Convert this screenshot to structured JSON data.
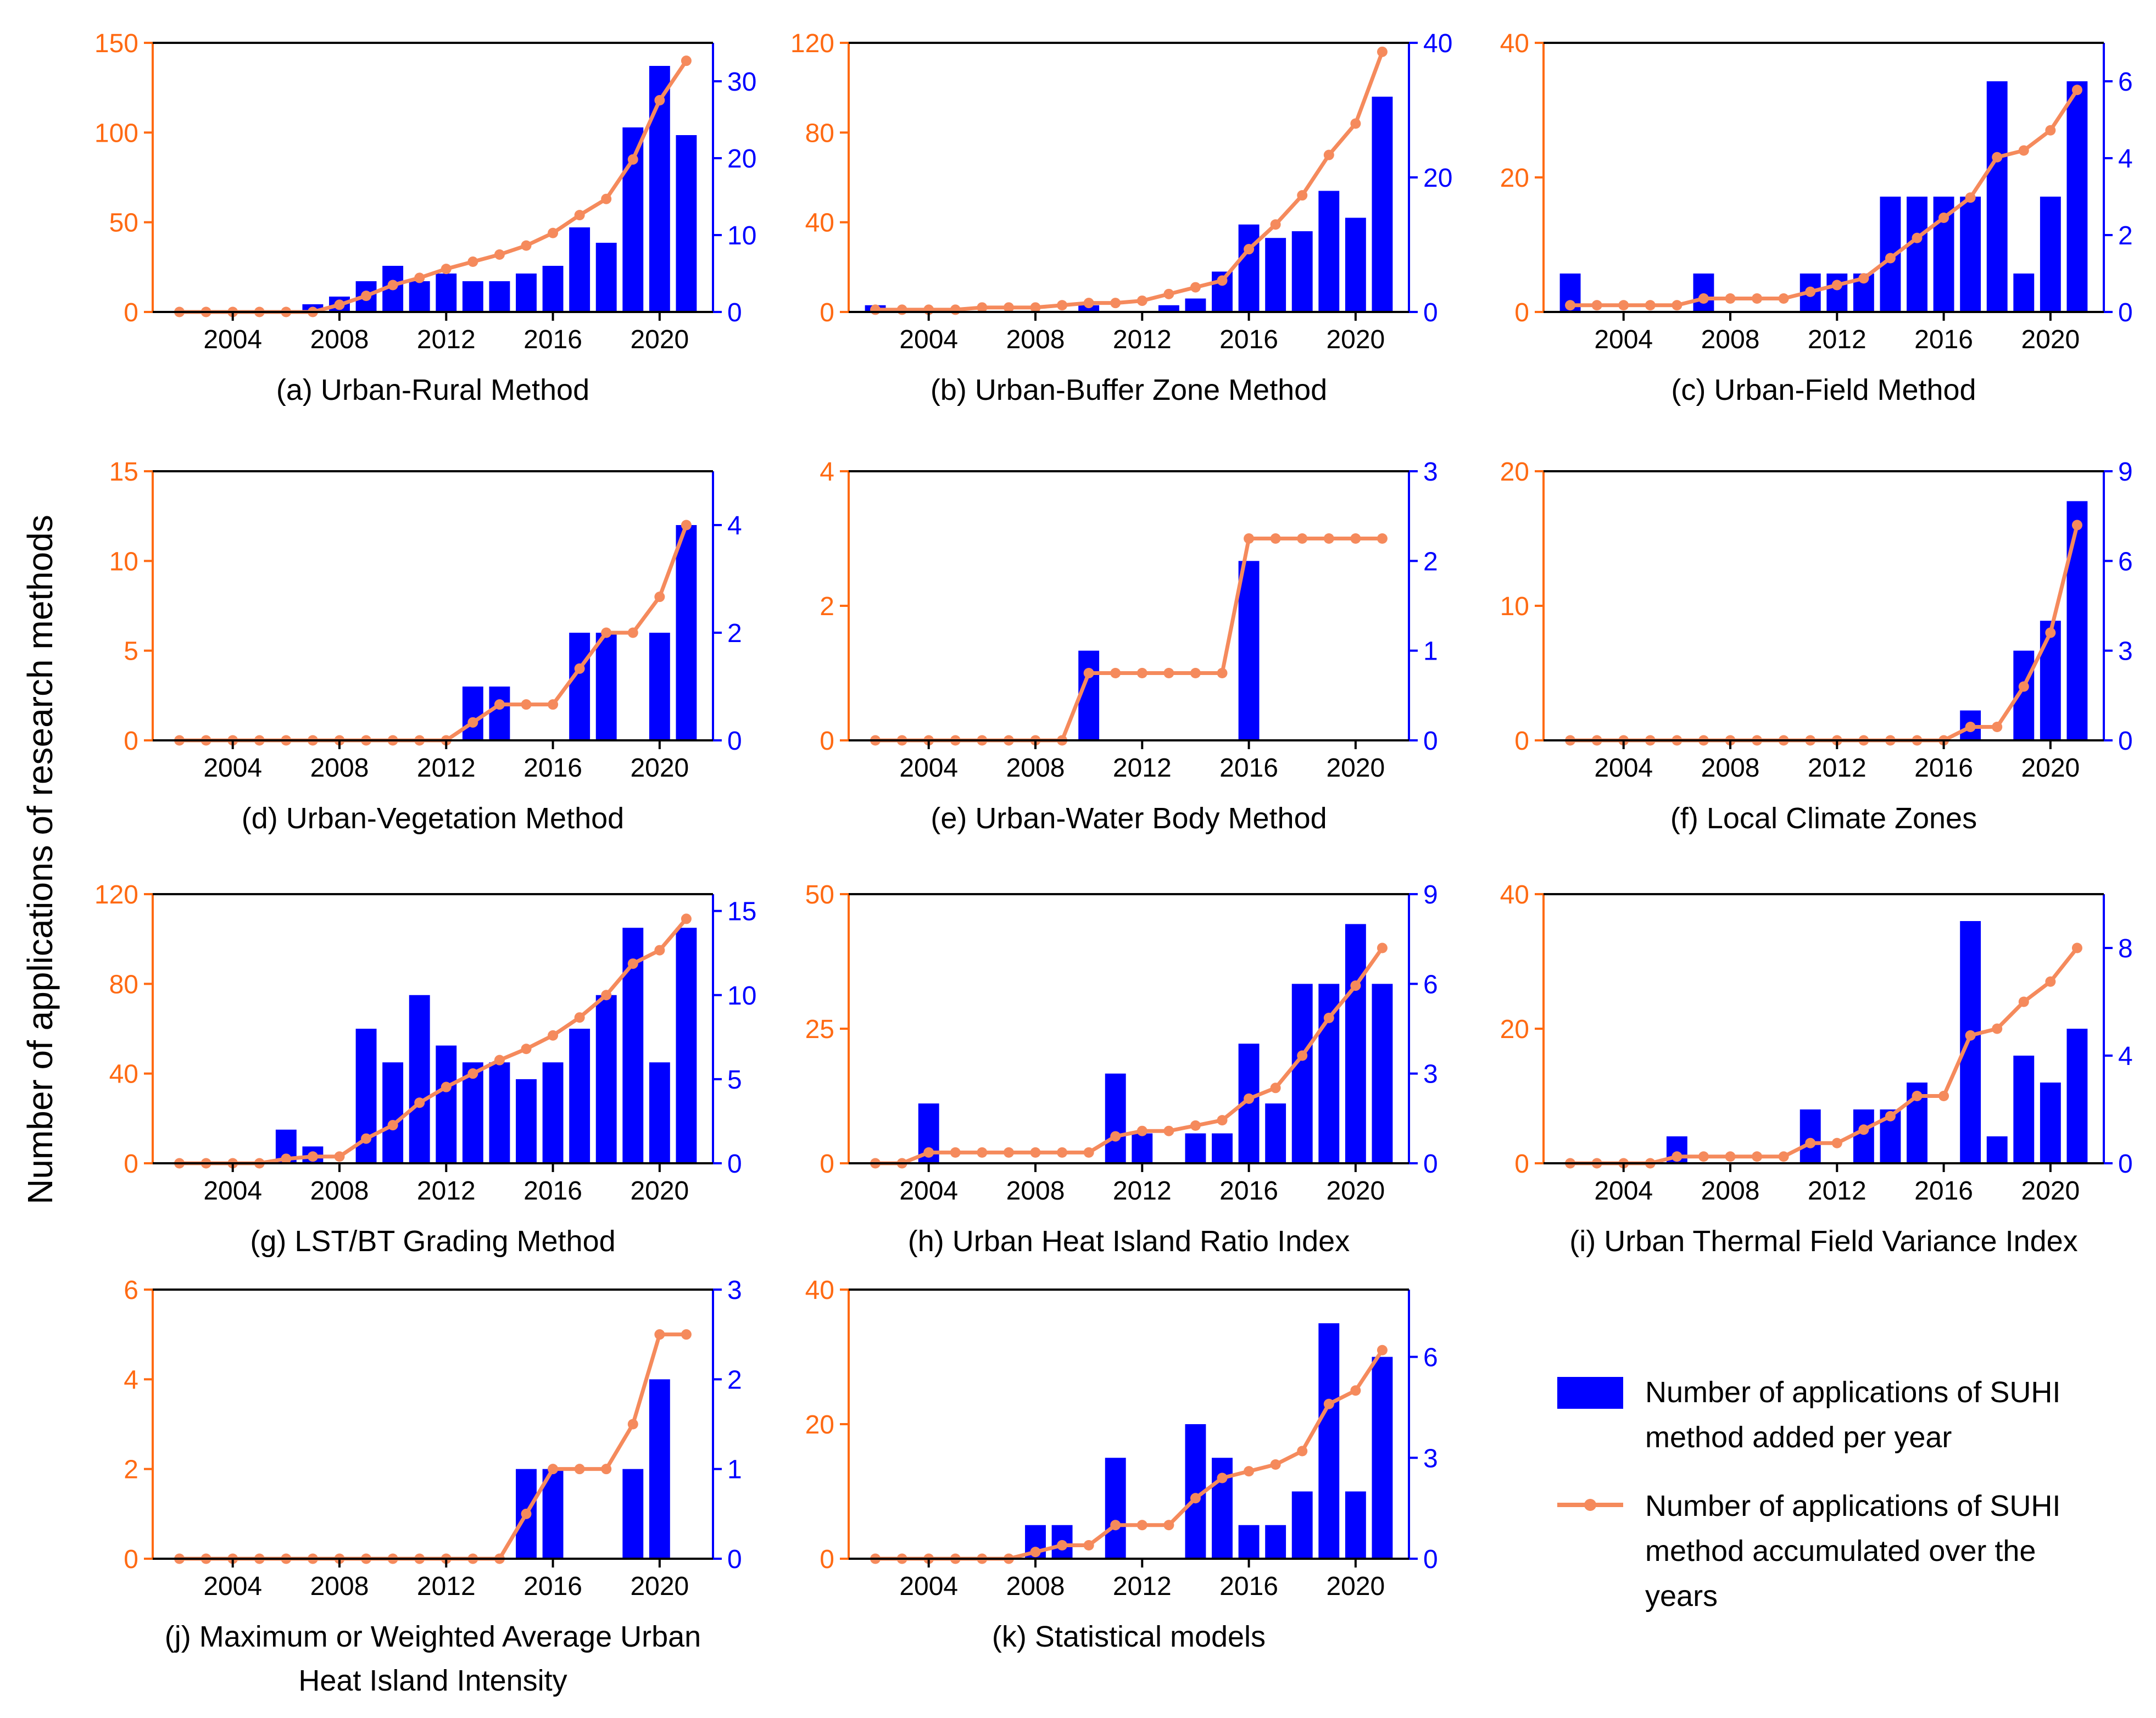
{
  "figure": {
    "ylabel": "Number of applications of research methods",
    "left_axis_color": "#FF6A13",
    "right_axis_color": "#0000FF",
    "bar_color": "#0000FF",
    "line_color": "#F58A5C",
    "x_tick_labels": [
      "2004",
      "2008",
      "2012",
      "2016",
      "2020"
    ]
  },
  "legend": {
    "bar_label_lines": [
      "Number of applications of SUHI",
      "method added per year"
    ],
    "line_label_lines": [
      "Number of applications of SUHI",
      "method accumulated over the",
      "years"
    ]
  },
  "chart_data": [
    {
      "type": "bar+line",
      "title_lines": [
        "(a) Urban-Rural Method"
      ],
      "x": [
        2002,
        2003,
        2004,
        2005,
        2006,
        2007,
        2008,
        2009,
        2010,
        2011,
        2012,
        2013,
        2014,
        2015,
        2016,
        2017,
        2018,
        2019,
        2020,
        2021
      ],
      "xlim": [
        2001,
        2022
      ],
      "xticks": [
        2004,
        2008,
        2012,
        2016,
        2020
      ],
      "bars_right_axis": [
        0,
        0,
        0,
        0,
        0,
        1,
        2,
        4,
        6,
        4,
        5,
        4,
        4,
        5,
        6,
        11,
        9,
        24,
        32,
        23
      ],
      "cumulative_left_axis": [
        0,
        0,
        0,
        0,
        0,
        0,
        4,
        9,
        15,
        19,
        24,
        28,
        32,
        37,
        44,
        54,
        63,
        85,
        118,
        140
      ],
      "left_ylim": [
        0,
        150
      ],
      "left_yticks": [
        0,
        50,
        100,
        150
      ],
      "right_ylim": [
        0,
        35
      ],
      "right_yticks": [
        0,
        10,
        20,
        30
      ]
    },
    {
      "type": "bar+line",
      "title_lines": [
        "(b) Urban-Buffer Zone Method"
      ],
      "x": [
        2002,
        2003,
        2004,
        2005,
        2006,
        2007,
        2008,
        2009,
        2010,
        2011,
        2012,
        2013,
        2014,
        2015,
        2016,
        2017,
        2018,
        2019,
        2020,
        2021
      ],
      "xlim": [
        2001,
        2022
      ],
      "xticks": [
        2004,
        2008,
        2012,
        2016,
        2020
      ],
      "bars_right_axis": [
        1,
        0,
        0,
        0,
        0,
        0,
        0,
        0,
        1,
        0,
        0,
        1,
        2,
        6,
        13,
        11,
        12,
        18,
        14,
        32
      ],
      "cumulative_left_axis": [
        1,
        1,
        1,
        1,
        2,
        2,
        2,
        3,
        4,
        4,
        5,
        8,
        11,
        14,
        28,
        39,
        52,
        70,
        84,
        116
      ],
      "left_ylim": [
        0,
        120
      ],
      "left_yticks": [
        0,
        40,
        80,
        120
      ],
      "right_ylim": [
        0,
        40
      ],
      "right_yticks": [
        0,
        20,
        40
      ]
    },
    {
      "type": "bar+line",
      "title_lines": [
        "(c) Urban-Field Method"
      ],
      "x": [
        2002,
        2003,
        2004,
        2005,
        2006,
        2007,
        2008,
        2009,
        2010,
        2011,
        2012,
        2013,
        2014,
        2015,
        2016,
        2017,
        2018,
        2019,
        2020,
        2021
      ],
      "xlim": [
        2001,
        2022
      ],
      "xticks": [
        2004,
        2008,
        2012,
        2016,
        2020
      ],
      "bars_right_axis": [
        1,
        0,
        0,
        0,
        0,
        1,
        0,
        0,
        0,
        1,
        1,
        1,
        3,
        3,
        3,
        3,
        6,
        1,
        3,
        6
      ],
      "cumulative_left_axis": [
        1,
        1,
        1,
        1,
        1,
        2,
        2,
        2,
        2,
        3,
        4,
        5,
        8,
        11,
        14,
        17,
        23,
        24,
        27,
        33
      ],
      "left_ylim": [
        0,
        40
      ],
      "left_yticks": [
        0,
        20,
        40
      ],
      "right_ylim": [
        0,
        7
      ],
      "right_yticks": [
        0,
        2,
        4,
        6
      ]
    },
    {
      "type": "bar+line",
      "title_lines": [
        "(d) Urban-Vegetation Method"
      ],
      "x": [
        2002,
        2003,
        2004,
        2005,
        2006,
        2007,
        2008,
        2009,
        2010,
        2011,
        2012,
        2013,
        2014,
        2015,
        2016,
        2017,
        2018,
        2019,
        2020,
        2021
      ],
      "xlim": [
        2001,
        2022
      ],
      "xticks": [
        2004,
        2008,
        2012,
        2016,
        2020
      ],
      "bars_right_axis": [
        0,
        0,
        0,
        0,
        0,
        0,
        0,
        0,
        0,
        0,
        0,
        1,
        1,
        0,
        0,
        2,
        2,
        0,
        2,
        4
      ],
      "cumulative_left_axis": [
        0,
        0,
        0,
        0,
        0,
        0,
        0,
        0,
        0,
        0,
        0,
        1,
        2,
        2,
        2,
        4,
        6,
        6,
        8,
        12
      ],
      "left_ylim": [
        0,
        15
      ],
      "left_yticks": [
        0,
        5,
        10,
        15
      ],
      "right_ylim": [
        0,
        5
      ],
      "right_yticks": [
        0,
        2,
        4
      ]
    },
    {
      "type": "bar+line",
      "title_lines": [
        "(e) Urban-Water Body Method"
      ],
      "x": [
        2002,
        2003,
        2004,
        2005,
        2006,
        2007,
        2008,
        2009,
        2010,
        2011,
        2012,
        2013,
        2014,
        2015,
        2016,
        2017,
        2018,
        2019,
        2020,
        2021
      ],
      "xlim": [
        2001,
        2022
      ],
      "xticks": [
        2004,
        2008,
        2012,
        2016,
        2020
      ],
      "bars_right_axis": [
        0,
        0,
        0,
        0,
        0,
        0,
        0,
        0,
        1,
        0,
        0,
        0,
        0,
        0,
        2,
        0,
        0,
        0,
        0,
        0
      ],
      "cumulative_left_axis": [
        0,
        0,
        0,
        0,
        0,
        0,
        0,
        0,
        1,
        1,
        1,
        1,
        1,
        1,
        3,
        3,
        3,
        3,
        3,
        3
      ],
      "left_ylim": [
        0,
        4
      ],
      "left_yticks": [
        0,
        2,
        4
      ],
      "right_ylim": [
        0,
        3
      ],
      "right_yticks": [
        0,
        1,
        2,
        3
      ]
    },
    {
      "type": "bar+line",
      "title_lines": [
        "(f) Local Climate Zones"
      ],
      "x": [
        2002,
        2003,
        2004,
        2005,
        2006,
        2007,
        2008,
        2009,
        2010,
        2011,
        2012,
        2013,
        2014,
        2015,
        2016,
        2017,
        2018,
        2019,
        2020,
        2021
      ],
      "xlim": [
        2001,
        2022
      ],
      "xticks": [
        2004,
        2008,
        2012,
        2016,
        2020
      ],
      "bars_right_axis": [
        0,
        0,
        0,
        0,
        0,
        0,
        0,
        0,
        0,
        0,
        0,
        0,
        0,
        0,
        0,
        1,
        0,
        3,
        4,
        8
      ],
      "cumulative_left_axis": [
        0,
        0,
        0,
        0,
        0,
        0,
        0,
        0,
        0,
        0,
        0,
        0,
        0,
        0,
        0,
        1,
        1,
        4,
        8,
        16
      ],
      "left_ylim": [
        0,
        20
      ],
      "left_yticks": [
        0,
        10,
        20
      ],
      "right_ylim": [
        0,
        9
      ],
      "right_yticks": [
        0,
        3,
        6,
        9
      ]
    },
    {
      "type": "bar+line",
      "title_lines": [
        "(g) LST/BT Grading Method"
      ],
      "x": [
        2002,
        2003,
        2004,
        2005,
        2006,
        2007,
        2008,
        2009,
        2010,
        2011,
        2012,
        2013,
        2014,
        2015,
        2016,
        2017,
        2018,
        2019,
        2020,
        2021
      ],
      "xlim": [
        2001,
        2022
      ],
      "xticks": [
        2004,
        2008,
        2012,
        2016,
        2020
      ],
      "bars_right_axis": [
        0,
        0,
        0,
        0,
        2,
        1,
        0,
        8,
        6,
        10,
        7,
        6,
        6,
        5,
        6,
        8,
        10,
        14,
        6,
        14
      ],
      "cumulative_left_axis": [
        0,
        0,
        0,
        0,
        2,
        3,
        3,
        11,
        17,
        27,
        34,
        40,
        46,
        51,
        57,
        65,
        75,
        89,
        95,
        109
      ],
      "left_ylim": [
        0,
        120
      ],
      "left_yticks": [
        0,
        40,
        80,
        120
      ],
      "right_ylim": [
        0,
        16
      ],
      "right_yticks": [
        0,
        5,
        10,
        15
      ]
    },
    {
      "type": "bar+line",
      "title_lines": [
        "(h) Urban Heat Island Ratio Index"
      ],
      "x": [
        2002,
        2003,
        2004,
        2005,
        2006,
        2007,
        2008,
        2009,
        2010,
        2011,
        2012,
        2013,
        2014,
        2015,
        2016,
        2017,
        2018,
        2019,
        2020,
        2021
      ],
      "xlim": [
        2001,
        2022
      ],
      "xticks": [
        2004,
        2008,
        2012,
        2016,
        2020
      ],
      "bars_right_axis": [
        0,
        0,
        2,
        0,
        0,
        0,
        0,
        0,
        0,
        3,
        1,
        0,
        1,
        1,
        4,
        2,
        6,
        6,
        8,
        6
      ],
      "cumulative_left_axis": [
        0,
        0,
        2,
        2,
        2,
        2,
        2,
        2,
        2,
        5,
        6,
        6,
        7,
        8,
        12,
        14,
        20,
        27,
        33,
        40
      ],
      "left_ylim": [
        0,
        50
      ],
      "left_yticks": [
        0,
        25,
        50
      ],
      "right_ylim": [
        0,
        9
      ],
      "right_yticks": [
        0,
        3,
        6,
        9
      ]
    },
    {
      "type": "bar+line",
      "title_lines": [
        "(i) Urban Thermal Field Variance Index"
      ],
      "x": [
        2002,
        2003,
        2004,
        2005,
        2006,
        2007,
        2008,
        2009,
        2010,
        2011,
        2012,
        2013,
        2014,
        2015,
        2016,
        2017,
        2018,
        2019,
        2020,
        2021
      ],
      "xlim": [
        2001,
        2022
      ],
      "xticks": [
        2004,
        2008,
        2012,
        2016,
        2020
      ],
      "bars_right_axis": [
        0,
        0,
        0,
        0,
        1,
        0,
        0,
        0,
        0,
        2,
        0,
        2,
        2,
        3,
        0,
        9,
        1,
        4,
        3,
        5
      ],
      "cumulative_left_axis": [
        0,
        0,
        0,
        0,
        1,
        1,
        1,
        1,
        1,
        3,
        3,
        5,
        7,
        10,
        10,
        19,
        20,
        24,
        27,
        32
      ],
      "left_ylim": [
        0,
        40
      ],
      "left_yticks": [
        0,
        20,
        40
      ],
      "right_ylim": [
        0,
        10
      ],
      "right_yticks": [
        0,
        4,
        8
      ]
    },
    {
      "type": "bar+line",
      "title_lines": [
        "(j) Maximum or Weighted Average Urban",
        "Heat Island Intensity"
      ],
      "x": [
        2002,
        2003,
        2004,
        2005,
        2006,
        2007,
        2008,
        2009,
        2010,
        2011,
        2012,
        2013,
        2014,
        2015,
        2016,
        2017,
        2018,
        2019,
        2020,
        2021
      ],
      "xlim": [
        2001,
        2022
      ],
      "xticks": [
        2004,
        2008,
        2012,
        2016,
        2020
      ],
      "bars_right_axis": [
        0,
        0,
        0,
        0,
        0,
        0,
        0,
        0,
        0,
        0,
        0,
        0,
        0,
        1,
        1,
        0,
        0,
        1,
        2,
        0
      ],
      "cumulative_left_axis": [
        0,
        0,
        0,
        0,
        0,
        0,
        0,
        0,
        0,
        0,
        0,
        0,
        0,
        1,
        2,
        2,
        2,
        3,
        5,
        5
      ],
      "left_ylim": [
        0,
        6
      ],
      "left_yticks": [
        0,
        2,
        4,
        6
      ],
      "right_ylim": [
        0,
        3
      ],
      "right_yticks": [
        0,
        1,
        2,
        3
      ]
    },
    {
      "type": "bar+line",
      "title_lines": [
        "(k) Statistical models"
      ],
      "x": [
        2002,
        2003,
        2004,
        2005,
        2006,
        2007,
        2008,
        2009,
        2010,
        2011,
        2012,
        2013,
        2014,
        2015,
        2016,
        2017,
        2018,
        2019,
        2020,
        2021
      ],
      "xlim": [
        2001,
        2022
      ],
      "xticks": [
        2004,
        2008,
        2012,
        2016,
        2020
      ],
      "bars_right_axis": [
        0,
        0,
        0,
        0,
        0,
        0,
        1,
        1,
        0,
        3,
        0,
        0,
        4,
        3,
        1,
        1,
        2,
        7,
        2,
        6
      ],
      "cumulative_left_axis": [
        0,
        0,
        0,
        0,
        0,
        0,
        1,
        2,
        2,
        5,
        5,
        5,
        9,
        12,
        13,
        14,
        16,
        23,
        25,
        31
      ],
      "left_ylim": [
        0,
        40
      ],
      "left_yticks": [
        0,
        20,
        40
      ],
      "right_ylim": [
        0,
        8
      ],
      "right_yticks": [
        0,
        3,
        6
      ]
    }
  ]
}
